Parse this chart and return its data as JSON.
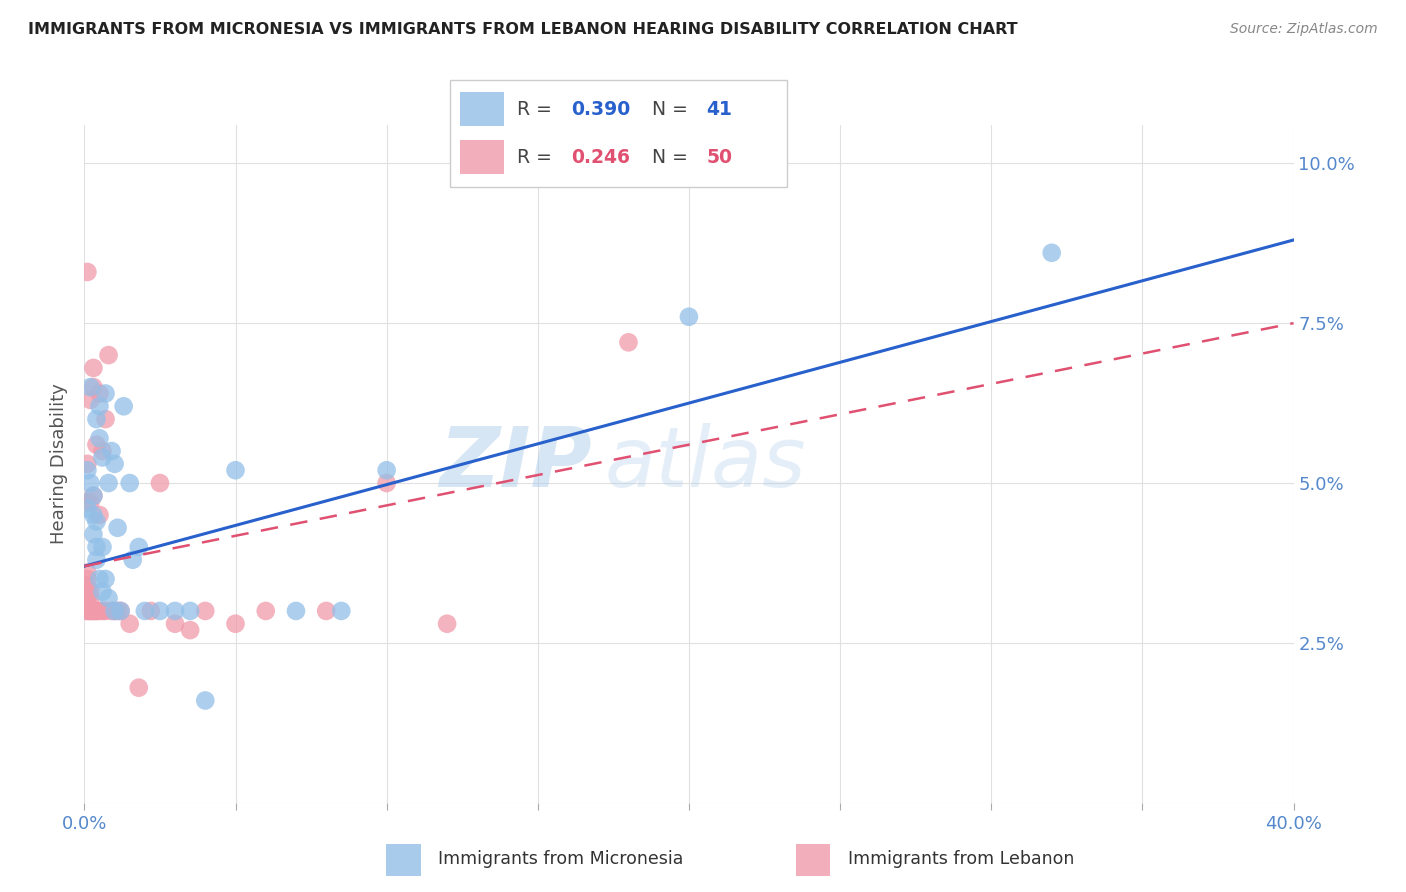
{
  "title": "IMMIGRANTS FROM MICRONESIA VS IMMIGRANTS FROM LEBANON HEARING DISABILITY CORRELATION CHART",
  "source": "Source: ZipAtlas.com",
  "ylabel": "Hearing Disability",
  "yticks": [
    0.0,
    0.025,
    0.05,
    0.075,
    0.1
  ],
  "ytick_labels": [
    "",
    "2.5%",
    "5.0%",
    "7.5%",
    "10.0%"
  ],
  "xlim": [
    0.0,
    0.4
  ],
  "ylim": [
    0.0,
    0.106
  ],
  "micronesia_R": 0.39,
  "micronesia_N": 41,
  "lebanon_R": 0.246,
  "lebanon_N": 50,
  "micronesia_color": "#92bfe8",
  "lebanon_color": "#f09aaa",
  "micronesia_line_color": "#2860cc",
  "lebanon_line_color": "#e05070",
  "watermark_zip": "ZIP",
  "watermark_atl": "atlas",
  "background_color": "#ffffff",
  "grid_color": "#e0e0e0",
  "axis_label_color": "#5588cc",
  "title_color": "#222222",
  "micronesia_x": [
    0.001,
    0.001,
    0.002,
    0.002,
    0.003,
    0.003,
    0.003,
    0.004,
    0.004,
    0.004,
    0.004,
    0.005,
    0.005,
    0.005,
    0.006,
    0.006,
    0.006,
    0.007,
    0.007,
    0.008,
    0.008,
    0.009,
    0.01,
    0.01,
    0.011,
    0.012,
    0.013,
    0.015,
    0.016,
    0.018,
    0.02,
    0.025,
    0.03,
    0.035,
    0.04,
    0.05,
    0.07,
    0.085,
    0.1,
    0.2,
    0.32
  ],
  "micronesia_y": [
    0.046,
    0.052,
    0.05,
    0.065,
    0.048,
    0.045,
    0.042,
    0.044,
    0.04,
    0.038,
    0.06,
    0.057,
    0.062,
    0.035,
    0.054,
    0.04,
    0.033,
    0.035,
    0.064,
    0.05,
    0.032,
    0.055,
    0.053,
    0.03,
    0.043,
    0.03,
    0.062,
    0.05,
    0.038,
    0.04,
    0.03,
    0.03,
    0.03,
    0.03,
    0.016,
    0.052,
    0.03,
    0.03,
    0.052,
    0.076,
    0.086
  ],
  "lebanon_x": [
    0.001,
    0.001,
    0.001,
    0.001,
    0.001,
    0.001,
    0.001,
    0.001,
    0.001,
    0.001,
    0.001,
    0.002,
    0.002,
    0.002,
    0.002,
    0.002,
    0.002,
    0.003,
    0.003,
    0.003,
    0.003,
    0.003,
    0.004,
    0.004,
    0.004,
    0.005,
    0.005,
    0.005,
    0.006,
    0.006,
    0.007,
    0.007,
    0.008,
    0.009,
    0.01,
    0.011,
    0.012,
    0.015,
    0.018,
    0.022,
    0.025,
    0.03,
    0.035,
    0.04,
    0.05,
    0.06,
    0.08,
    0.1,
    0.12,
    0.18
  ],
  "lebanon_y": [
    0.03,
    0.03,
    0.031,
    0.032,
    0.033,
    0.034,
    0.035,
    0.036,
    0.047,
    0.053,
    0.083,
    0.03,
    0.03,
    0.032,
    0.033,
    0.047,
    0.063,
    0.03,
    0.03,
    0.048,
    0.065,
    0.068,
    0.03,
    0.03,
    0.056,
    0.03,
    0.045,
    0.064,
    0.03,
    0.055,
    0.03,
    0.06,
    0.07,
    0.03,
    0.03,
    0.03,
    0.03,
    0.028,
    0.018,
    0.03,
    0.05,
    0.028,
    0.027,
    0.03,
    0.028,
    0.03,
    0.03,
    0.05,
    0.028,
    0.072
  ],
  "micro_line_x0": 0.0,
  "micro_line_x1": 0.4,
  "micro_line_y0": 0.037,
  "micro_line_y1": 0.088,
  "leb_line_x0": 0.0,
  "leb_line_x1": 0.4,
  "leb_line_y0": 0.037,
  "leb_line_y1": 0.075
}
